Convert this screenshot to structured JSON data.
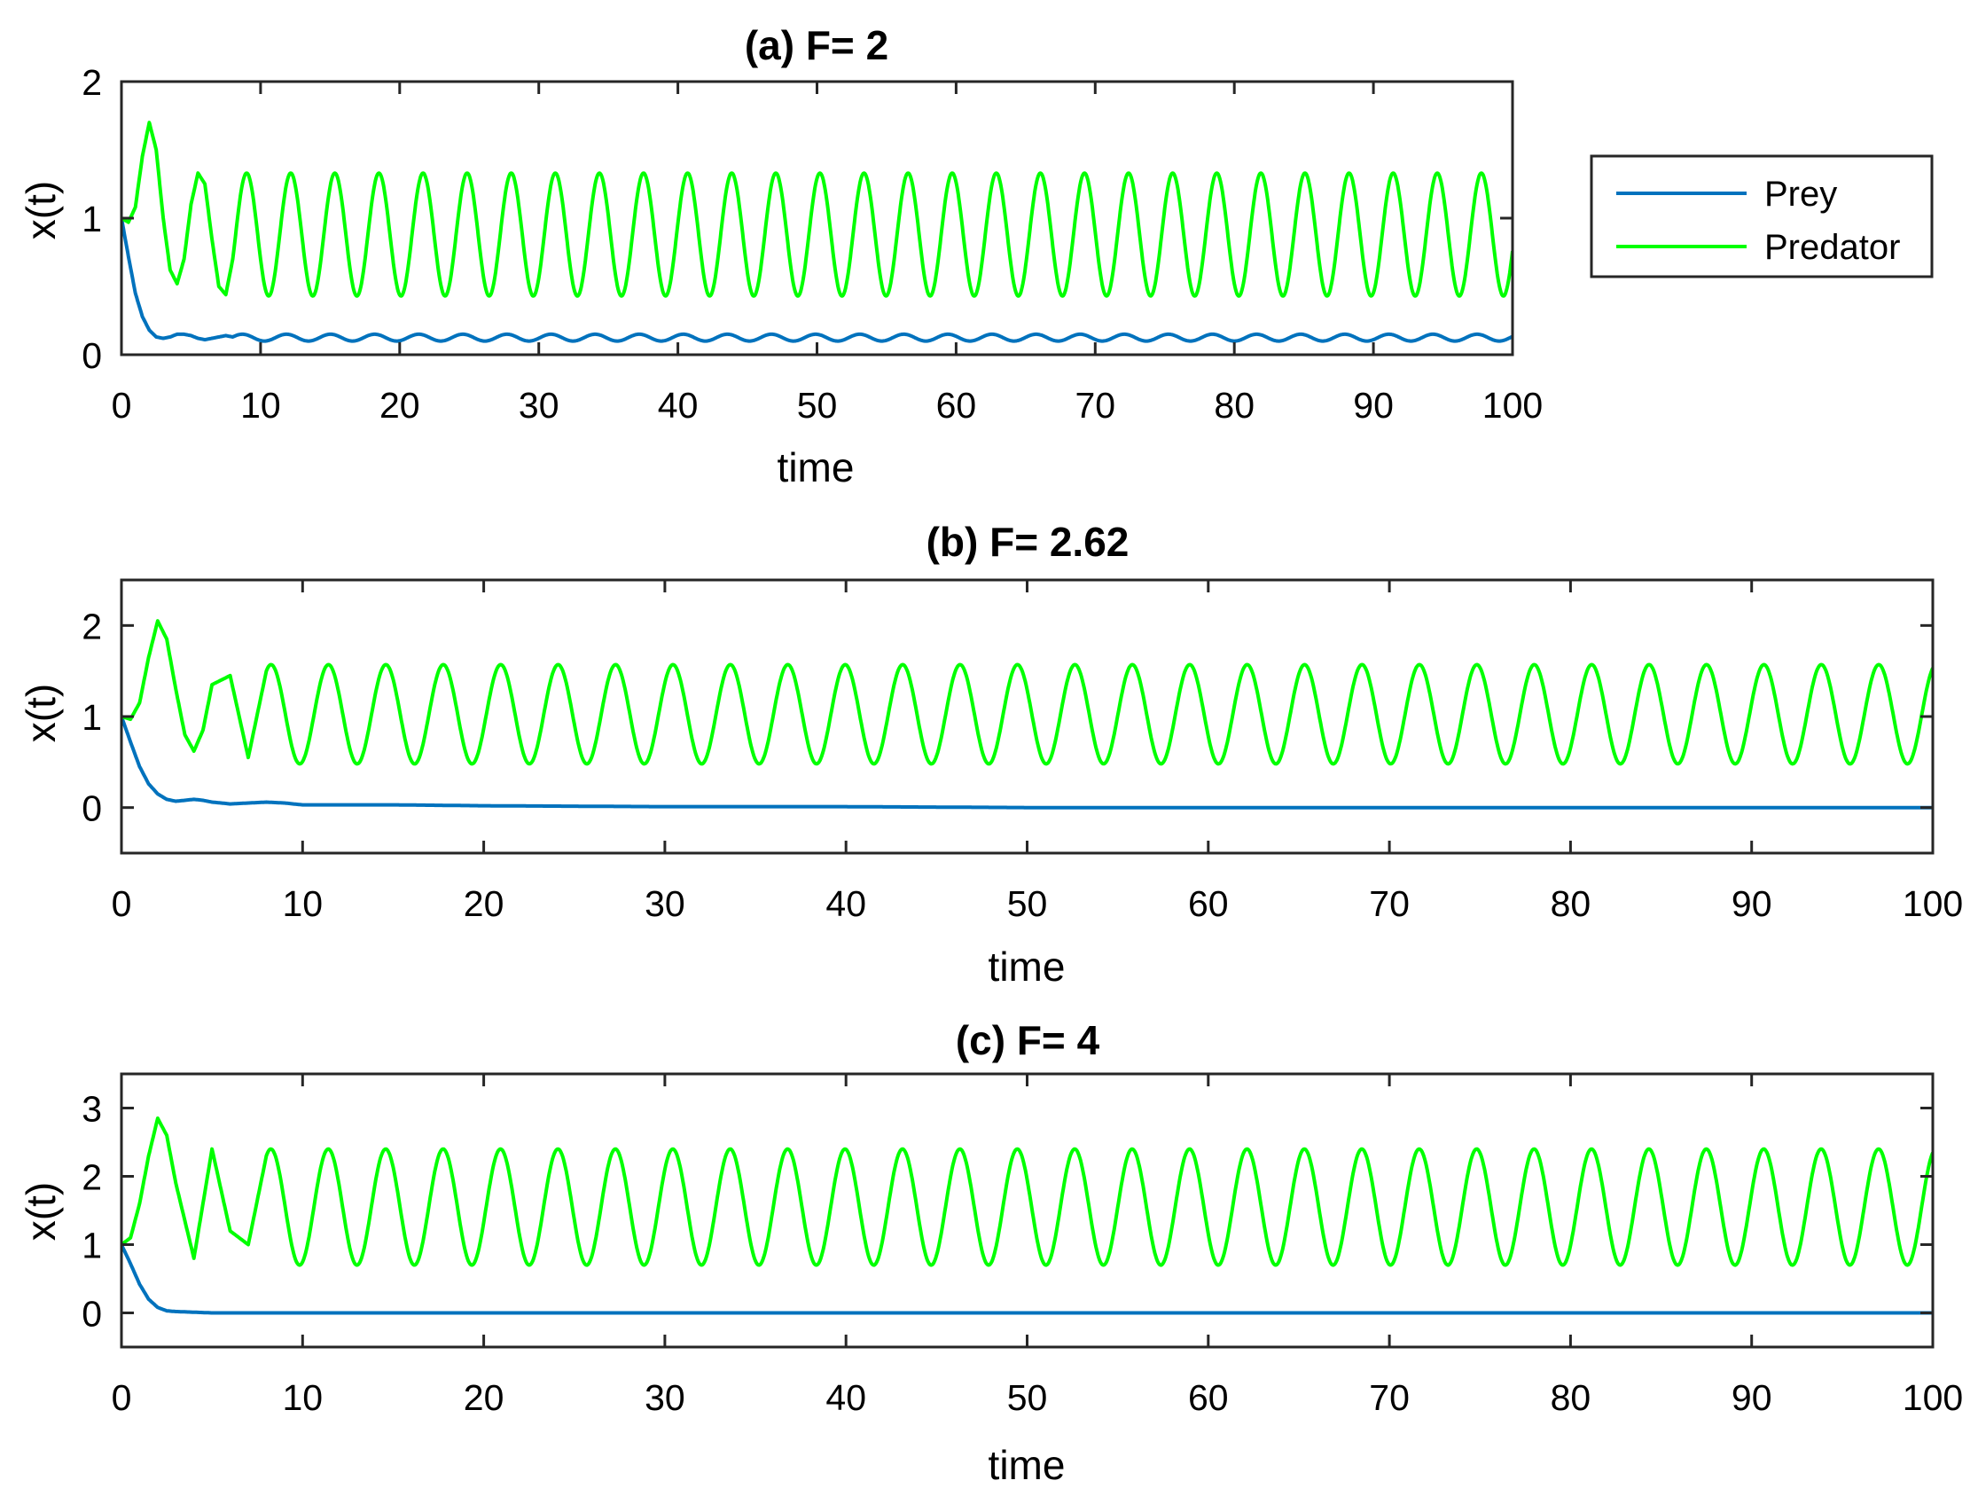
{
  "colors": {
    "prey": "#0072BD",
    "predator": "#00FF00",
    "axes": "#262626",
    "background": "#ffffff"
  },
  "legend": {
    "placement": "outside-right-of-top-panel",
    "entries": [
      "Prey",
      "Predator"
    ]
  },
  "chart_data": [
    {
      "type": "line",
      "title": "(a) F= 2",
      "xlabel": "time",
      "ylabel": "x(t)",
      "xlim": [
        0,
        100
      ],
      "ylim": [
        0,
        2
      ],
      "xticks": [
        0,
        10,
        20,
        30,
        40,
        50,
        60,
        70,
        80,
        90,
        100
      ],
      "yticks": [
        0,
        1,
        2
      ],
      "grid": false,
      "x": [
        0,
        0.5,
        1,
        1.5,
        2,
        2.5,
        3,
        3.5,
        4,
        4.5,
        5,
        5.5,
        6,
        6.5,
        7,
        7.5,
        8,
        9,
        10,
        20,
        30,
        40,
        50,
        60,
        70,
        80,
        90,
        100
      ],
      "series": [
        {
          "name": "Prey",
          "color": "#0072BD",
          "values": [
            1.0,
            0.72,
            0.45,
            0.28,
            0.18,
            0.13,
            0.12,
            0.13,
            0.15,
            0.15,
            0.14,
            0.12,
            0.11,
            0.12,
            0.13,
            0.14,
            0.13,
            0.12,
            0.13,
            0.13,
            0.13,
            0.13,
            0.13,
            0.13,
            0.13,
            0.13,
            0.13,
            0.11
          ],
          "steady_oscillation": {
            "min": 0.1,
            "max": 0.15,
            "period": 3.17
          }
        },
        {
          "name": "Predator",
          "color": "#00FF00",
          "values": [
            1.0,
            0.97,
            1.08,
            1.45,
            1.7,
            1.5,
            1.0,
            0.62,
            0.52,
            0.7,
            1.1,
            1.33,
            1.25,
            0.85,
            0.5,
            0.44,
            0.7,
            1.3,
            0.6,
            1.1,
            0.6,
            1.2,
            0.7,
            1.0,
            1.2,
            0.6,
            1.3,
            1.1
          ],
          "steady_oscillation": {
            "min": 0.43,
            "max": 1.33,
            "period": 3.17
          }
        }
      ]
    },
    {
      "type": "line",
      "title": "(b) F= 2.62",
      "xlabel": "time",
      "ylabel": "x(t)",
      "xlim": [
        0,
        100
      ],
      "ylim": [
        -0.5,
        2.5
      ],
      "xticks": [
        0,
        10,
        20,
        30,
        40,
        50,
        60,
        70,
        80,
        90,
        100
      ],
      "yticks": [
        0,
        1,
        2
      ],
      "grid": false,
      "x": [
        0,
        0.5,
        1,
        1.5,
        2,
        2.5,
        3,
        3.5,
        4,
        4.5,
        5,
        6,
        7,
        8,
        9,
        10,
        15,
        20,
        30,
        40,
        50,
        60,
        70,
        80,
        90,
        100
      ],
      "series": [
        {
          "name": "Prey",
          "color": "#0072BD",
          "values": [
            1.0,
            0.72,
            0.45,
            0.26,
            0.15,
            0.09,
            0.07,
            0.08,
            0.09,
            0.08,
            0.06,
            0.04,
            0.05,
            0.06,
            0.05,
            0.03,
            0.03,
            0.02,
            0.01,
            0.01,
            0.0,
            0.0,
            0.0,
            0.0,
            0.0,
            0.0
          ],
          "steady_oscillation": {
            "min": 0.0,
            "max": 0.0,
            "period": 3.17
          }
        },
        {
          "name": "Predator",
          "color": "#00FF00",
          "values": [
            1.0,
            0.97,
            1.15,
            1.65,
            2.05,
            1.85,
            1.3,
            0.8,
            0.62,
            0.85,
            1.35,
            1.45,
            0.55,
            1.5,
            1.2,
            0.6,
            1.0,
            1.2,
            0.7,
            1.4,
            1.1,
            0.6,
            1.5,
            0.9,
            1.3,
            1.3
          ],
          "steady_oscillation": {
            "min": 0.48,
            "max": 1.57,
            "period": 3.17
          }
        }
      ]
    },
    {
      "type": "line",
      "title": "(c) F= 4",
      "xlabel": "time",
      "ylabel": "x(t)",
      "xlim": [
        0,
        100
      ],
      "ylim": [
        -0.5,
        3.5
      ],
      "xticks": [
        0,
        10,
        20,
        30,
        40,
        50,
        60,
        70,
        80,
        90,
        100
      ],
      "yticks": [
        0,
        1,
        2,
        3
      ],
      "grid": false,
      "x": [
        0,
        0.5,
        1,
        1.5,
        2,
        2.5,
        3,
        4,
        5,
        6,
        7,
        8,
        10,
        20,
        30,
        40,
        50,
        60,
        70,
        80,
        90,
        100
      ],
      "series": [
        {
          "name": "Prey",
          "color": "#0072BD",
          "values": [
            1.0,
            0.72,
            0.42,
            0.2,
            0.08,
            0.03,
            0.02,
            0.01,
            0.0,
            0.0,
            0.0,
            0.0,
            0.0,
            0.0,
            0.0,
            0.0,
            0.0,
            0.0,
            0.0,
            0.0,
            0.0,
            0.0
          ],
          "steady_oscillation": {
            "min": 0.0,
            "max": 0.0,
            "period": 3.17
          }
        },
        {
          "name": "Predator",
          "color": "#00FF00",
          "values": [
            1.0,
            1.1,
            1.6,
            2.3,
            2.85,
            2.6,
            1.9,
            0.8,
            2.4,
            1.2,
            1.0,
            2.3,
            1.5,
            1.6,
            1.2,
            2.0,
            1.5,
            1.1,
            2.3,
            1.0,
            2.0,
            2.0
          ],
          "steady_oscillation": {
            "min": 0.7,
            "max": 2.4,
            "period": 3.17
          }
        }
      ]
    }
  ]
}
